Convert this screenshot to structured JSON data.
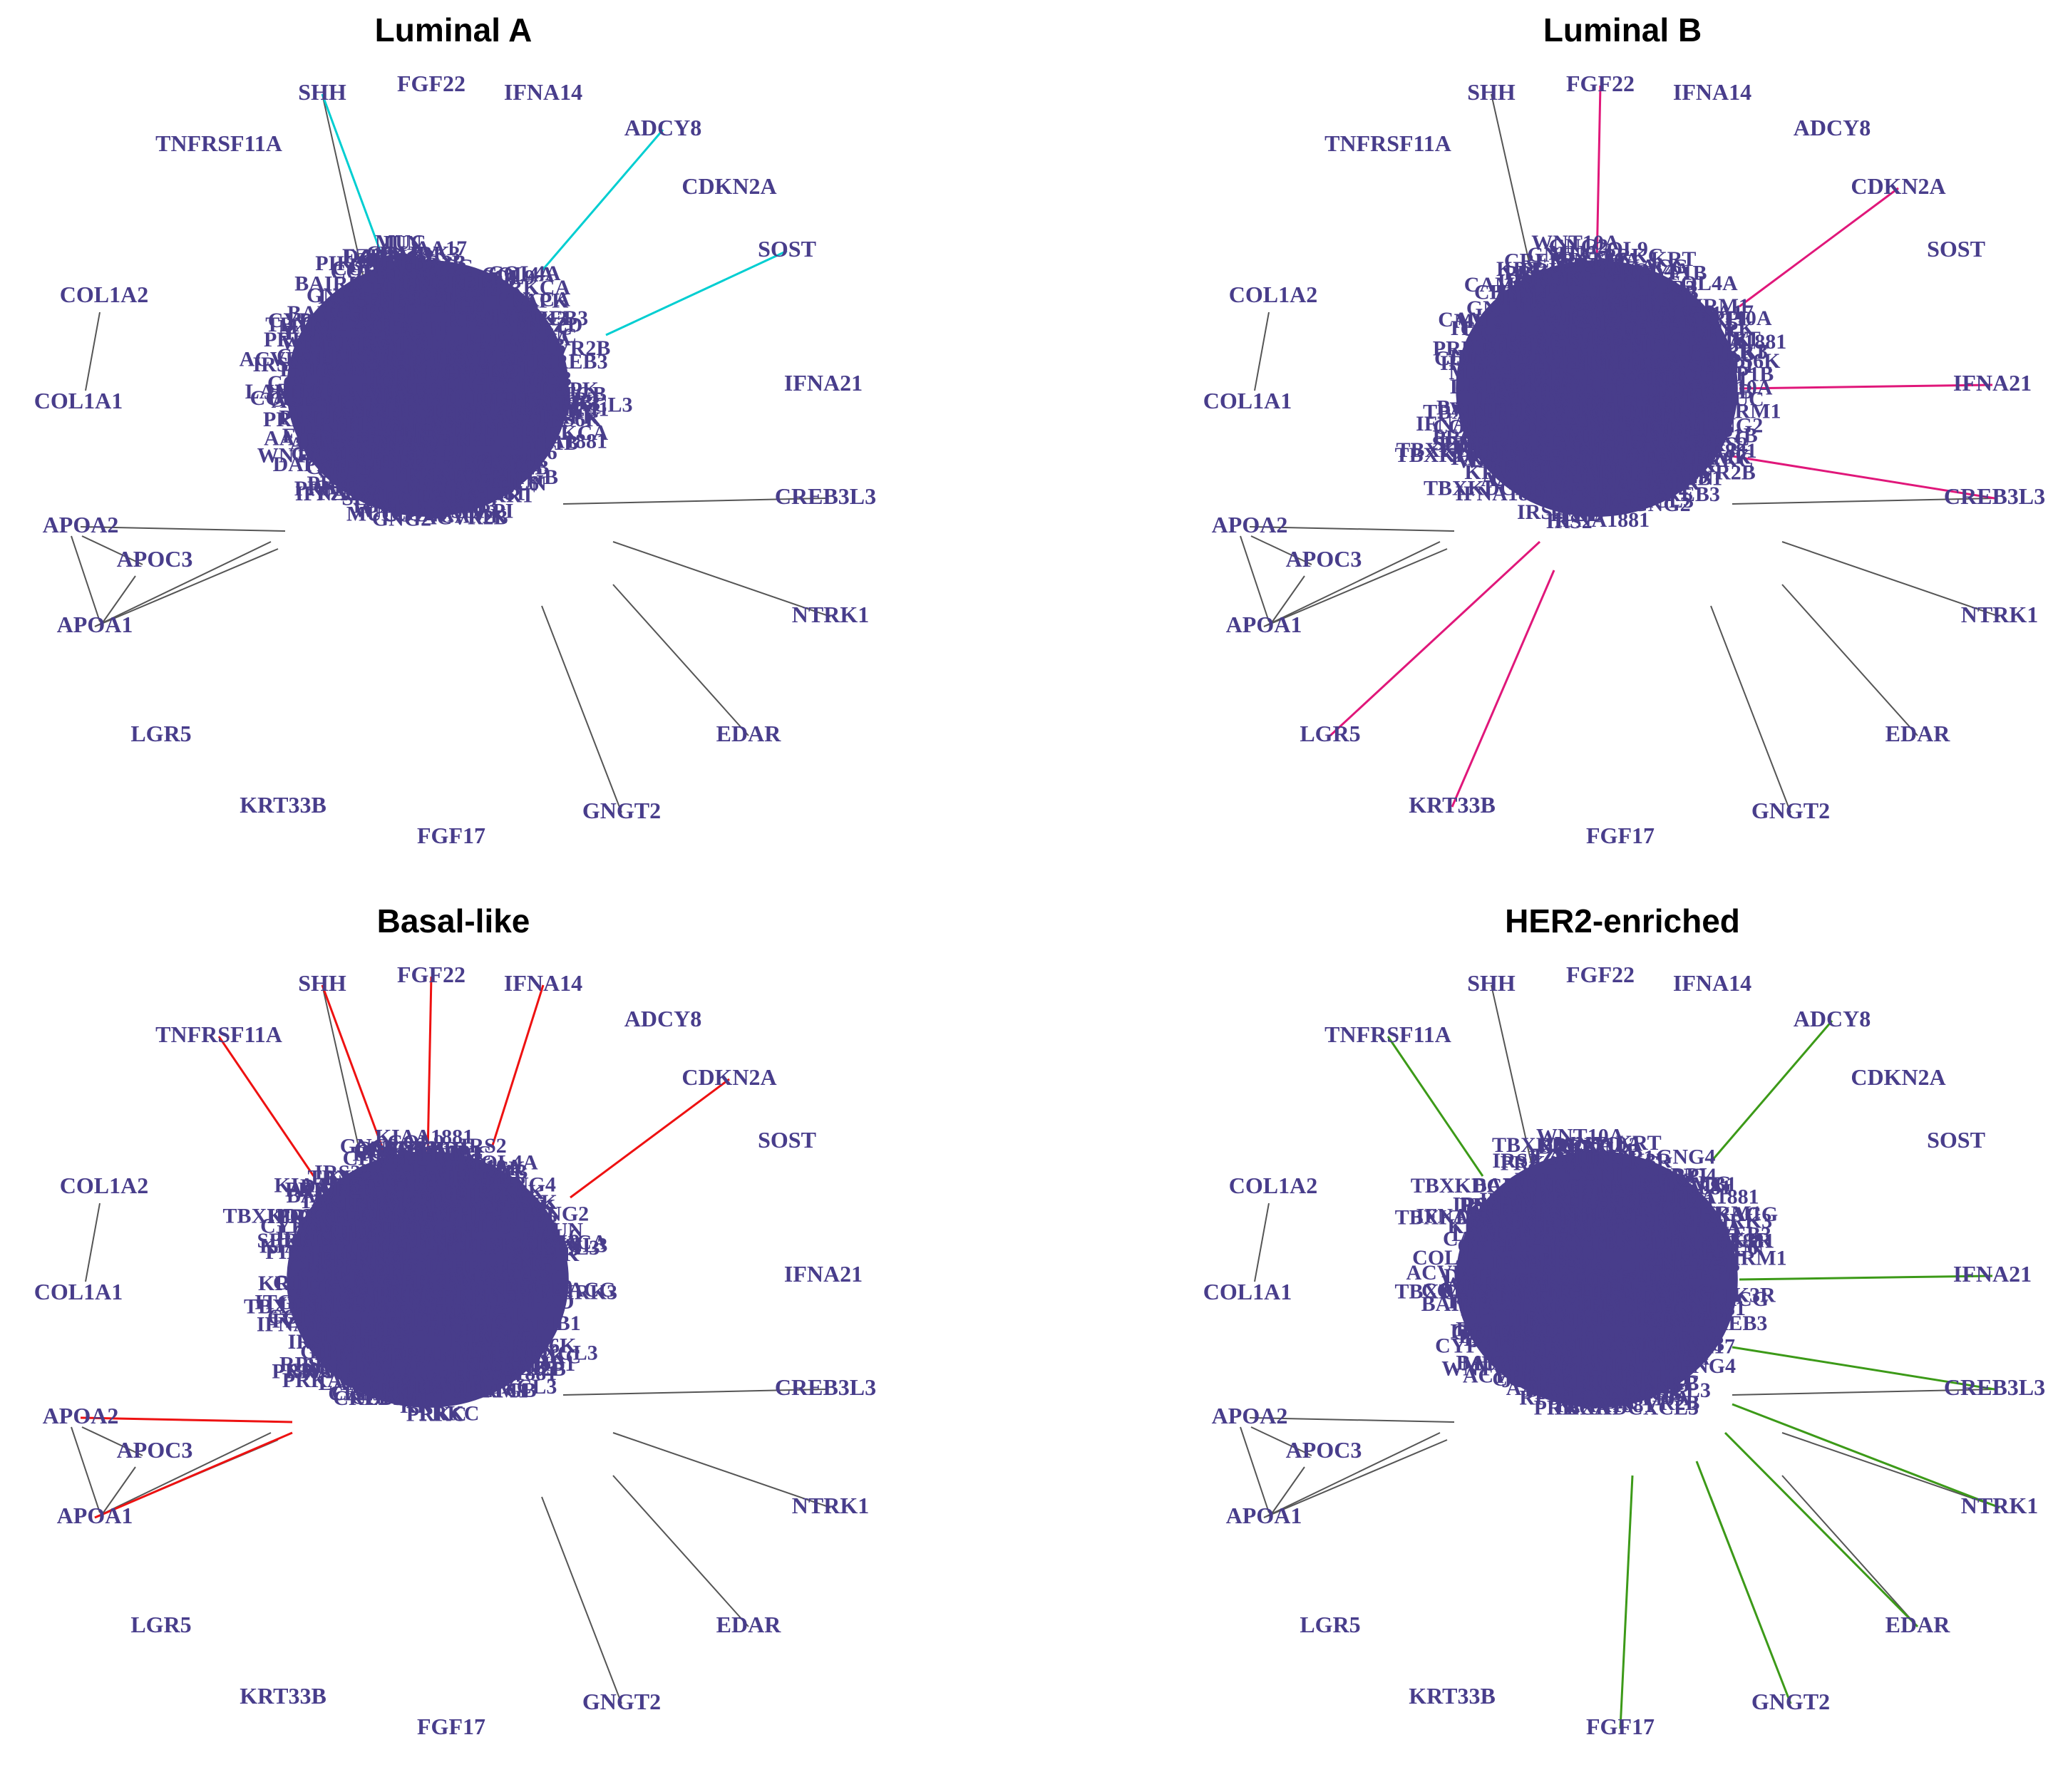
{
  "figure": {
    "node_color": "#483D8B",
    "base_edge_color": "#555555",
    "panels": [
      {
        "title": "Luminal A",
        "highlight_color": "#00CED1",
        "highlight_targets": [
          "SHH",
          "ADCY8",
          "SOST"
        ]
      },
      {
        "title": "Luminal B",
        "highlight_color": "#E0177A",
        "highlight_targets": [
          "FGF22",
          "CDKN2A",
          "IFNA21",
          "CREB3L3",
          "LGR5",
          "KRT33B"
        ]
      },
      {
        "title": "Basal-like",
        "highlight_color": "#EE1111",
        "highlight_targets": [
          "SHH",
          "FGF22",
          "IFNA14",
          "TNFRSF11A",
          "CDKN2A",
          "APOA2",
          "APOA1"
        ]
      },
      {
        "title": "HER2-enriched",
        "highlight_color": "#3C9A18",
        "highlight_targets": [
          "TNFRSF11A",
          "ADCY8",
          "IFNA21",
          "CREB3L3",
          "NTRK1",
          "EDAR",
          "GNGT2",
          "FGF17"
        ]
      }
    ],
    "peripheral_genes": [
      "SHH",
      "FGF22",
      "IFNA14",
      "ADCY8",
      "TNFRSF11A",
      "CDKN2A",
      "SOST",
      "COL1A2",
      "COL1A1",
      "IFNA21",
      "CREB3L3",
      "APOA2",
      "APOC3",
      "APOA1",
      "NTRK1",
      "LGR5",
      "EDAR",
      "KRT33B",
      "GNGT2",
      "FGF17"
    ],
    "hub_labels": [
      "BAIRK3",
      "COL4A",
      "COL6",
      "FZD",
      "CAMK",
      "MUC",
      "PRKC",
      "KRT",
      "SERPI",
      "TBXKDCXCL3",
      "PRKACG",
      "LAMB1",
      "IRS2",
      "GNG2",
      "IFNA1881",
      "KIAA1881",
      "AA17",
      "CREB3",
      "CYP1B",
      "GNG4",
      "ITGB",
      "WNT10A",
      "PIK3R",
      "ACVR2B",
      "RPS6K",
      "PRKCA",
      "CHRM1",
      "JUN",
      "COL9",
      "DAPK"
    ]
  }
}
